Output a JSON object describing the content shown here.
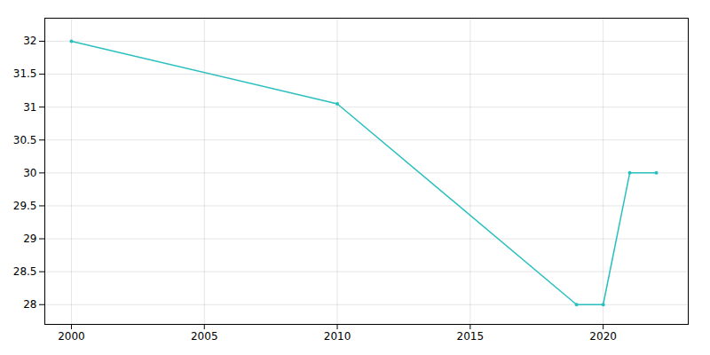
{
  "chart_data": {
    "type": "line",
    "x": [
      2000,
      2010,
      2019,
      2020,
      2021,
      2022
    ],
    "values": [
      32.0,
      31.05,
      28.0,
      28.0,
      30.0,
      30.0
    ],
    "color": "#2abfbf",
    "marker": "circle",
    "xlim": [
      1999.0,
      2023.2
    ],
    "xticks": [
      2000,
      2005,
      2010,
      2015,
      2020
    ],
    "ylim": [
      27.7,
      32.35
    ],
    "yticks": [
      28,
      28.5,
      29,
      29.5,
      30,
      30.5,
      31,
      31.5,
      32
    ],
    "grid": true
  }
}
